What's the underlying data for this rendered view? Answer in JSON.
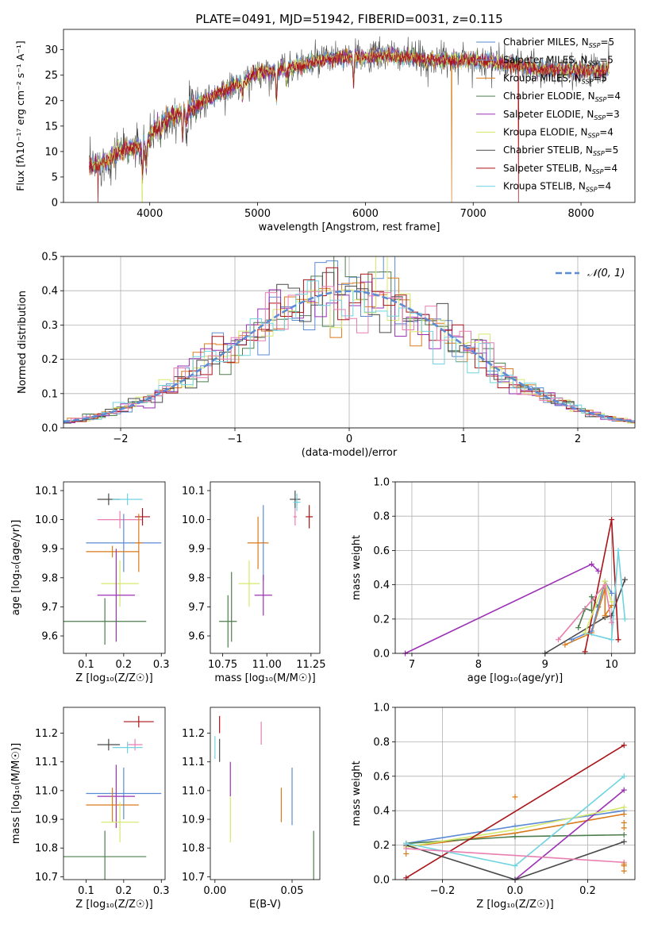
{
  "figure_title": "PLATE=0491, MJD=51942, FIBERID=0031, z=0.115",
  "colors": {
    "Chabrier MILES": "#5b8bd4",
    "Salpeter MILES": "#6f8ed6",
    "Kroupa MILES": "#d97a1a",
    "Chabrier ELODIE": "#4e7d4e",
    "Salpeter ELODIE": "#9b30b5",
    "Kroupa ELODIE": "#d5e86b",
    "Chabrier STELIB": "#4a4a4a",
    "Salpeter STELIB": "#aa1418",
    "Kroupa STELIB": "#6fd3e0",
    "pink": "#e87fb0",
    "normal": "#5b8bd4"
  },
  "chart_data": [
    {
      "type": "line",
      "id": "spectrum",
      "xlabel": "wavelength [Angstrom, rest frame]",
      "ylabel": "Flux [fλ10⁻¹⁷ erg cm⁻² s⁻¹ A⁻¹]",
      "xlim": [
        3200,
        8500
      ],
      "ylim": [
        0,
        34
      ],
      "xticks": [
        "4000",
        "5000",
        "6000",
        "7000",
        "8000"
      ],
      "yticks": [
        "0",
        "5",
        "10",
        "15",
        "20",
        "25",
        "30"
      ],
      "legend_placement": "right",
      "legend": [
        {
          "name": "Chabrier MILES",
          "label": "Chabrier MILES, N",
          "sub": "SSP",
          "tail": "=5"
        },
        {
          "name": "Salpeter MILES",
          "label": "Salpeter MILES, N",
          "sub": "SSP",
          "tail": "=5"
        },
        {
          "name": "Kroupa MILES",
          "label": "Kroupa MILES, N",
          "sub": "SSP",
          "tail": "=5"
        },
        {
          "name": "Chabrier ELODIE",
          "label": "Chabrier ELODIE, N",
          "sub": "SSP",
          "tail": "=4"
        },
        {
          "name": "Salpeter ELODIE",
          "label": "Salpeter ELODIE, N",
          "sub": "SSP",
          "tail": "=3"
        },
        {
          "name": "Kroupa ELODIE",
          "label": "Kroupa ELODIE, N",
          "sub": "SSP",
          "tail": "=4"
        },
        {
          "name": "Chabrier STELIB",
          "label": "Chabrier STELIB, N",
          "sub": "SSP",
          "tail": "=5"
        },
        {
          "name": "Salpeter STELIB",
          "label": "Salpeter STELIB, N",
          "sub": "SSP",
          "tail": "=4"
        },
        {
          "name": "Kroupa STELIB",
          "label": "Kroupa STELIB, N",
          "sub": "SSP",
          "tail": "=4"
        }
      ],
      "continuum": [
        [
          3440,
          7
        ],
        [
          3600,
          8
        ],
        [
          3700,
          10
        ],
        [
          3800,
          10.5
        ],
        [
          3950,
          11
        ],
        [
          4050,
          14.5
        ],
        [
          4200,
          17
        ],
        [
          4350,
          18
        ],
        [
          4500,
          20
        ],
        [
          4700,
          22
        ],
        [
          4900,
          24
        ],
        [
          5000,
          25.5
        ],
        [
          5200,
          26
        ],
        [
          5400,
          27
        ],
        [
          5600,
          28
        ],
        [
          5800,
          28.5
        ],
        [
          6000,
          28.5
        ],
        [
          6200,
          29
        ],
        [
          6400,
          28.5
        ],
        [
          6600,
          28
        ],
        [
          6800,
          28
        ],
        [
          7000,
          28
        ],
        [
          7200,
          27.5
        ],
        [
          7400,
          27
        ],
        [
          7600,
          26
        ],
        [
          7800,
          26
        ],
        [
          8000,
          26
        ],
        [
          8200,
          26
        ],
        [
          8260,
          26.5
        ]
      ],
      "absorption_lines": [
        [
          3933,
          6
        ],
        [
          3968,
          5
        ],
        [
          4101,
          2
        ],
        [
          4304,
          5
        ],
        [
          4340,
          3
        ],
        [
          4861,
          3
        ],
        [
          5175,
          6
        ],
        [
          5270,
          2
        ],
        [
          5890,
          5
        ],
        [
          6563,
          1
        ]
      ],
      "drops_to_zero": [
        [
          3520,
          "Salpeter STELIB"
        ],
        [
          3930,
          "Kroupa ELODIE"
        ],
        [
          6800,
          "Kroupa MILES"
        ],
        [
          7420,
          "Salpeter STELIB"
        ]
      ]
    },
    {
      "type": "histogram",
      "id": "residuals",
      "xlabel": "(data-model)/error",
      "ylabel": "Normed distribution",
      "xlim": [
        -2.5,
        2.5
      ],
      "ylim": [
        0,
        0.5
      ],
      "xticks": [
        {
          "v": -2,
          "t": "−2"
        },
        {
          "v": -1,
          "t": "−1"
        },
        {
          "v": 0,
          "t": "0"
        },
        {
          "v": 1,
          "t": "1"
        },
        {
          "v": 2,
          "t": "2"
        }
      ],
      "yticks": [
        "0.0",
        "0.1",
        "0.2",
        "0.3",
        "0.4",
        "0.5"
      ],
      "grid": true,
      "legend": {
        "label": "𝒩(0, 1)",
        "placement": "top-right"
      },
      "normal_curve": {
        "mean": 0,
        "sigma": 1,
        "style": "dashed"
      },
      "bin_width": 0.1
    },
    {
      "type": "scatter",
      "id": "age-vs-Z",
      "xlabel": "Z [log₁₀(Z/Z☉)]",
      "ylabel": "age  [log₁₀(age/yr)]",
      "xlim": [
        0.04,
        0.31
      ],
      "ylim": [
        9.54,
        10.13
      ],
      "xticks": [
        "0.1",
        "0.2",
        "0.3"
      ],
      "yticks": [
        "9.6",
        "9.7",
        "9.8",
        "9.9",
        "10.0",
        "10.1"
      ],
      "points": [
        {
          "series": "Chabrier STELIB",
          "x": 0.16,
          "y": 10.07,
          "xerr": 0.03,
          "yerr": 0.02
        },
        {
          "series": "Kroupa STELIB",
          "x": 0.21,
          "y": 10.07,
          "xerr": 0.04,
          "yerr": 0.02
        },
        {
          "series": "pink",
          "x": 0.19,
          "y": 10.0,
          "xerr": 0.06,
          "yerr": 0.03
        },
        {
          "series": "Salpeter STELIB",
          "x": 0.25,
          "y": 10.01,
          "xerr": 0.02,
          "yerr": 0.03
        },
        {
          "series": "Chabrier MILES",
          "x": 0.2,
          "y": 9.92,
          "xerr": 0.1,
          "yerr": 0.1
        },
        {
          "series": "Kroupa MILES",
          "x": 0.24,
          "y": 9.92,
          "xerr": 0.01,
          "yerr": 0.1
        },
        {
          "series": "Kroupa MILES",
          "x": 0.17,
          "y": 9.89,
          "xerr": 0.07,
          "yerr": 0.02
        },
        {
          "series": "Kroupa ELODIE",
          "x": 0.19,
          "y": 9.78,
          "xerr": 0.05,
          "yerr": 0.08
        },
        {
          "series": "Salpeter ELODIE",
          "x": 0.18,
          "y": 9.74,
          "xerr": 0.05,
          "yerr": 0.16
        },
        {
          "series": "Chabrier ELODIE",
          "x": 0.15,
          "y": 9.65,
          "xerr": 0.11,
          "yerr": 0.08
        }
      ]
    },
    {
      "type": "scatter",
      "id": "age-vs-mass",
      "xlabel": "mass [log₁₀(M/M☉)]",
      "ylabel": "",
      "xlim": [
        10.68,
        11.3
      ],
      "ylim": [
        9.54,
        10.13
      ],
      "xticks": [
        "10.75",
        "11.00",
        "11.25"
      ],
      "yticks": [
        "9.6",
        "9.7",
        "9.8",
        "9.9",
        "10.0",
        "10.1"
      ],
      "points": [
        {
          "series": "Chabrier STELIB",
          "x": 11.16,
          "y": 10.07,
          "xerr": 0.03,
          "yerr": 0.03
        },
        {
          "series": "Kroupa STELIB",
          "x": 11.17,
          "y": 10.06,
          "xerr": 0.02,
          "yerr": 0.03
        },
        {
          "series": "pink",
          "x": 11.16,
          "y": 10.01,
          "xerr": 0.01,
          "yerr": 0.03
        },
        {
          "series": "Salpeter STELIB",
          "x": 11.24,
          "y": 10.01,
          "xerr": 0.02,
          "yerr": 0.04
        },
        {
          "series": "Chabrier MILES",
          "x": 10.98,
          "y": 9.92,
          "xerr": 0.01,
          "yerr": 0.13
        },
        {
          "series": "Kroupa MILES",
          "x": 10.95,
          "y": 9.92,
          "xerr": 0.06,
          "yerr": 0.09
        },
        {
          "series": "Kroupa ELODIE",
          "x": 10.9,
          "y": 9.78,
          "xerr": 0.06,
          "yerr": 0.08
        },
        {
          "series": "Salpeter ELODIE",
          "x": 10.98,
          "y": 9.74,
          "xerr": 0.05,
          "yerr": 0.07
        },
        {
          "series": "Chabrier ELODIE",
          "x": 10.78,
          "y": 9.65,
          "xerr": 0.05,
          "yerr": 0.09
        },
        {
          "series": "Chabrier ELODIE",
          "x": 10.8,
          "y": 9.7,
          "xerr": 0.0,
          "yerr": 0.12
        }
      ]
    },
    {
      "type": "line",
      "id": "massweight-vs-age",
      "xlabel": "age  [log₁₀(age/yr)]",
      "ylabel": "mass weight",
      "xlim": [
        6.75,
        10.35
      ],
      "ylim": [
        0,
        1.0
      ],
      "xticks": [
        "7",
        "8",
        "9",
        "10"
      ],
      "yticks": [
        "0.0",
        "0.2",
        "0.4",
        "0.6",
        "0.8",
        "1.0"
      ],
      "grid": true,
      "series": [
        {
          "name": "Salpeter ELODIE",
          "points": [
            [
              6.9,
              0.0
            ],
            [
              9.7,
              0.52
            ],
            [
              9.8,
              0.48
            ]
          ]
        },
        {
          "name": "Chabrier STELIB",
          "points": [
            [
              9.0,
              0.0
            ],
            [
              9.9,
              0.21
            ],
            [
              10.0,
              0.22
            ],
            [
              10.2,
              0.43
            ]
          ]
        },
        {
          "name": "Chabrier ELODIE",
          "points": [
            [
              9.5,
              0.15
            ],
            [
              9.6,
              0.26
            ],
            [
              9.7,
              0.25
            ],
            [
              9.7,
              0.33
            ],
            [
              9.8,
              0.27
            ]
          ]
        },
        {
          "name": "Kroupa MILES",
          "points": [
            [
              9.3,
              0.05
            ],
            [
              9.7,
              0.12
            ],
            [
              9.9,
              0.38
            ],
            [
              9.9,
              0.22
            ],
            [
              10.0,
              0.28
            ]
          ]
        },
        {
          "name": "Chabrier MILES",
          "points": [
            [
              9.4,
              0.08
            ],
            [
              9.7,
              0.13
            ],
            [
              9.9,
              0.42
            ],
            [
              10.0,
              0.35
            ]
          ]
        },
        {
          "name": "Salpeter STELIB",
          "points": [
            [
              9.6,
              0.01
            ],
            [
              10.0,
              0.78
            ],
            [
              10.1,
              0.08
            ]
          ]
        },
        {
          "name": "Kroupa STELIB",
          "points": [
            [
              9.6,
              0.12
            ],
            [
              10.0,
              0.08
            ],
            [
              10.1,
              0.6
            ],
            [
              10.2,
              0.2
            ]
          ]
        },
        {
          "name": "Kroupa ELODIE",
          "points": [
            [
              9.6,
              0.12
            ],
            [
              9.9,
              0.42
            ],
            [
              10.0,
              0.3
            ]
          ]
        },
        {
          "name": "pink",
          "points": [
            [
              9.2,
              0.08
            ],
            [
              9.9,
              0.4
            ],
            [
              10.0,
              0.18
            ]
          ]
        }
      ]
    },
    {
      "type": "scatter",
      "id": "mass-vs-Z",
      "xlabel": "Z [log₁₀(Z/Z☉)]",
      "ylabel": "mass [log₁₀(M/M☉)]",
      "xlim": [
        0.04,
        0.31
      ],
      "ylim": [
        10.69,
        11.29
      ],
      "xticks": [
        "0.1",
        "0.2",
        "0.3"
      ],
      "yticks": [
        "10.7",
        "10.8",
        "10.9",
        "11.0",
        "11.1",
        "11.2"
      ],
      "points": [
        {
          "series": "Salpeter STELIB",
          "x": 0.24,
          "y": 11.24,
          "xerr": 0.04,
          "yerr": 0.02
        },
        {
          "series": "Chabrier STELIB",
          "x": 0.16,
          "y": 11.16,
          "xerr": 0.03,
          "yerr": 0.02
        },
        {
          "series": "pink",
          "x": 0.23,
          "y": 11.16,
          "xerr": 0.02,
          "yerr": 0.02
        },
        {
          "series": "Kroupa STELIB",
          "x": 0.21,
          "y": 11.15,
          "xerr": 0.04,
          "yerr": 0.02
        },
        {
          "series": "Chabrier MILES",
          "x": 0.2,
          "y": 10.99,
          "xerr": 0.1,
          "yerr": 0.09
        },
        {
          "series": "Salpeter ELODIE",
          "x": 0.18,
          "y": 10.98,
          "xerr": 0.05,
          "yerr": 0.11
        },
        {
          "series": "Kroupa MILES",
          "x": 0.17,
          "y": 10.95,
          "xerr": 0.07,
          "yerr": 0.06
        },
        {
          "series": "Kroupa ELODIE",
          "x": 0.19,
          "y": 10.89,
          "xerr": 0.05,
          "yerr": 0.07
        },
        {
          "series": "Chabrier ELODIE",
          "x": 0.15,
          "y": 10.77,
          "xerr": 0.11,
          "yerr": 0.09
        }
      ]
    },
    {
      "type": "scatter",
      "id": "mass-vs-EBV",
      "xlabel": "E(B-V)",
      "ylabel": "",
      "xlim": [
        -0.003,
        0.068
      ],
      "ylim": [
        10.69,
        11.29
      ],
      "xticks": [
        "0.00",
        "0.05"
      ],
      "yticks": [
        "10.7",
        "10.8",
        "10.9",
        "11.0",
        "11.1",
        "11.2"
      ],
      "points": [
        {
          "series": "Salpeter STELIB",
          "x": 0.003,
          "y": 11.23,
          "yerr": 0.03
        },
        {
          "series": "pink",
          "x": 0.03,
          "y": 11.2,
          "yerr": 0.04
        },
        {
          "series": "Chabrier STELIB",
          "x": 0.003,
          "y": 11.14,
          "yerr": 0.04
        },
        {
          "series": "Kroupa STELIB",
          "x": 0.0,
          "y": 11.15,
          "yerr": 0.04
        },
        {
          "series": "Salpeter ELODIE",
          "x": 0.01,
          "y": 11.04,
          "yerr": 0.06
        },
        {
          "series": "Chabrier MILES",
          "x": 0.05,
          "y": 10.98,
          "yerr": 0.1
        },
        {
          "series": "Kroupa MILES",
          "x": 0.043,
          "y": 10.95,
          "yerr": 0.06
        },
        {
          "series": "Kroupa ELODIE",
          "x": 0.01,
          "y": 10.9,
          "yerr": 0.08
        },
        {
          "series": "Chabrier ELODIE",
          "x": 0.064,
          "y": 10.77,
          "yerr": 0.09
        }
      ]
    },
    {
      "type": "line",
      "id": "massweight-vs-Z",
      "xlabel": "Z [log₁₀(Z/Z☉)]",
      "ylabel": "mass weight",
      "xlim": [
        -0.33,
        0.33
      ],
      "ylim": [
        0,
        1.0
      ],
      "xticks": [
        {
          "v": -0.2,
          "t": "−0.2"
        },
        {
          "v": 0.0,
          "t": "0.0"
        },
        {
          "v": 0.2,
          "t": "0.2"
        }
      ],
      "yticks": [
        "0.0",
        "0.2",
        "0.4",
        "0.6",
        "0.8",
        "1.0"
      ],
      "grid": true,
      "series": [
        {
          "name": "Chabrier MILES",
          "points": [
            [
              -0.3,
              0.21
            ],
            [
              0.0,
              0.31
            ],
            [
              0.3,
              0.4
            ]
          ]
        },
        {
          "name": "Kroupa MILES",
          "points": [
            [
              -0.3,
              0.19
            ],
            [
              0.0,
              0.27
            ],
            [
              0.3,
              0.38
            ]
          ]
        },
        {
          "name": "Chabrier ELODIE",
          "points": [
            [
              -0.3,
              0.21
            ],
            [
              0.0,
              0.25
            ],
            [
              0.3,
              0.26
            ]
          ]
        },
        {
          "name": "Salpeter ELODIE",
          "points": [
            [
              0.0,
              0.0
            ],
            [
              0.3,
              0.52
            ]
          ]
        },
        {
          "name": "Kroupa ELODIE",
          "points": [
            [
              -0.3,
              0.19
            ],
            [
              0.0,
              0.29
            ],
            [
              0.3,
              0.42
            ]
          ]
        },
        {
          "name": "Chabrier STELIB",
          "points": [
            [
              -0.3,
              0.2
            ],
            [
              0.0,
              0.0
            ],
            [
              0.3,
              0.22
            ]
          ]
        },
        {
          "name": "Salpeter STELIB",
          "points": [
            [
              -0.3,
              0.01
            ],
            [
              0.3,
              0.78
            ]
          ]
        },
        {
          "name": "Kroupa STELIB",
          "points": [
            [
              -0.3,
              0.21
            ],
            [
              0.0,
              0.08
            ],
            [
              0.3,
              0.6
            ]
          ]
        },
        {
          "name": "pink",
          "points": [
            [
              -0.3,
              0.18
            ],
            [
              0.3,
              0.1
            ]
          ]
        }
      ],
      "markers_at_x": [
        [
          0.3,
          0.05
        ],
        [
          0.3,
          0.08
        ],
        [
          0.3,
          0.09
        ],
        [
          0.3,
          0.3
        ],
        [
          0.3,
          0.33
        ],
        [
          0.0,
          0.48
        ],
        [
          -0.3,
          0.15
        ]
      ]
    }
  ]
}
